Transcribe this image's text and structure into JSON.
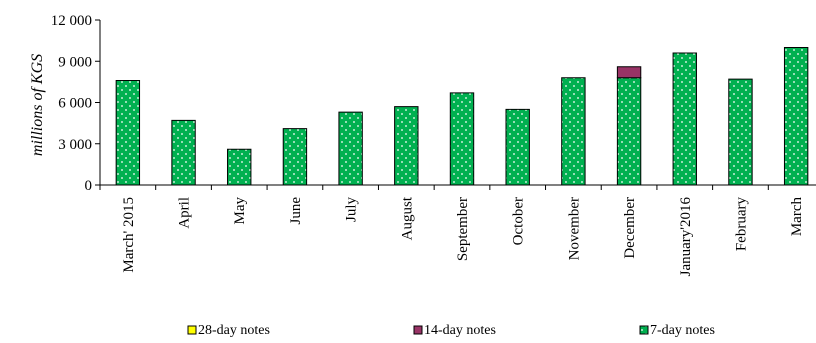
{
  "chart_data": {
    "type": "bar",
    "stacked": true,
    "title": "",
    "xlabel": "",
    "ylabel": "millions of KGS",
    "ylim": [
      0,
      12000
    ],
    "yticks": [
      "0",
      "3 000",
      "6 000",
      "9 000",
      "12 000"
    ],
    "ytick_values": [
      0,
      3000,
      6000,
      9000,
      12000
    ],
    "grid": false,
    "legend_position": "bottom",
    "categories": [
      "March' 2015",
      "April",
      "May",
      "June",
      "July",
      "August",
      "September",
      "October",
      "November",
      "December",
      "January'2016",
      "February",
      "March"
    ],
    "series": [
      {
        "name": "28-day notes",
        "color": "#ffff00",
        "values": [
          0,
          0,
          0,
          0,
          0,
          0,
          0,
          0,
          0,
          0,
          0,
          0,
          0
        ]
      },
      {
        "name": "14-day notes",
        "color": "#993366",
        "values": [
          0,
          0,
          0,
          0,
          0,
          0,
          0,
          0,
          0,
          800,
          0,
          0,
          0
        ]
      },
      {
        "name": "7-day notes",
        "color": "#00b050",
        "values": [
          7600,
          4700,
          2600,
          4100,
          5300,
          5700,
          6700,
          5500,
          7800,
          7800,
          9600,
          7700,
          10000
        ]
      }
    ],
    "stack_order": [
      "7-day notes",
      "14-day notes",
      "28-day notes"
    ]
  }
}
